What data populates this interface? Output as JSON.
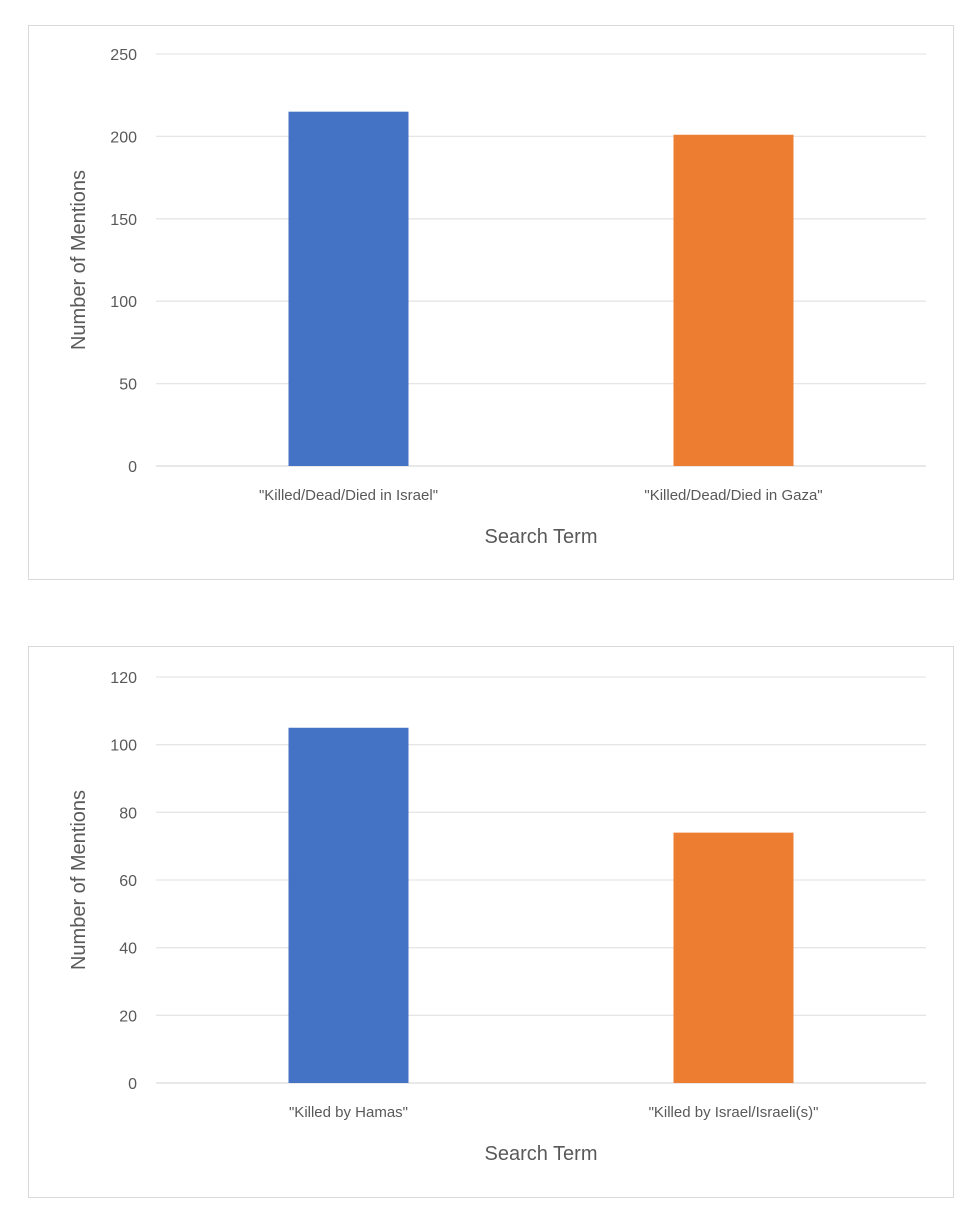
{
  "chart_data": [
    {
      "type": "bar",
      "title": "",
      "categories": [
        "\"Killed/Dead/Died in Israel\"",
        "\"Killed/Dead/Died in Gaza\""
      ],
      "values": [
        215,
        201
      ],
      "colors": [
        "#4472c4",
        "#ed7d31"
      ],
      "xlabel": "Search Term",
      "ylabel": "Number of Mentions",
      "ylim": [
        0,
        250
      ],
      "yticks": [
        0,
        50,
        100,
        150,
        200,
        250
      ],
      "grid": true
    },
    {
      "type": "bar",
      "title": "",
      "categories": [
        "\"Killed by Hamas\"",
        "\"Killed by Israel/Israeli(s)\""
      ],
      "values": [
        105,
        74
      ],
      "colors": [
        "#4472c4",
        "#ed7d31"
      ],
      "xlabel": "Search Term",
      "ylabel": "Number of Mentions",
      "ylim": [
        0,
        120
      ],
      "yticks": [
        0,
        20,
        40,
        60,
        80,
        100,
        120
      ],
      "grid": true
    }
  ]
}
